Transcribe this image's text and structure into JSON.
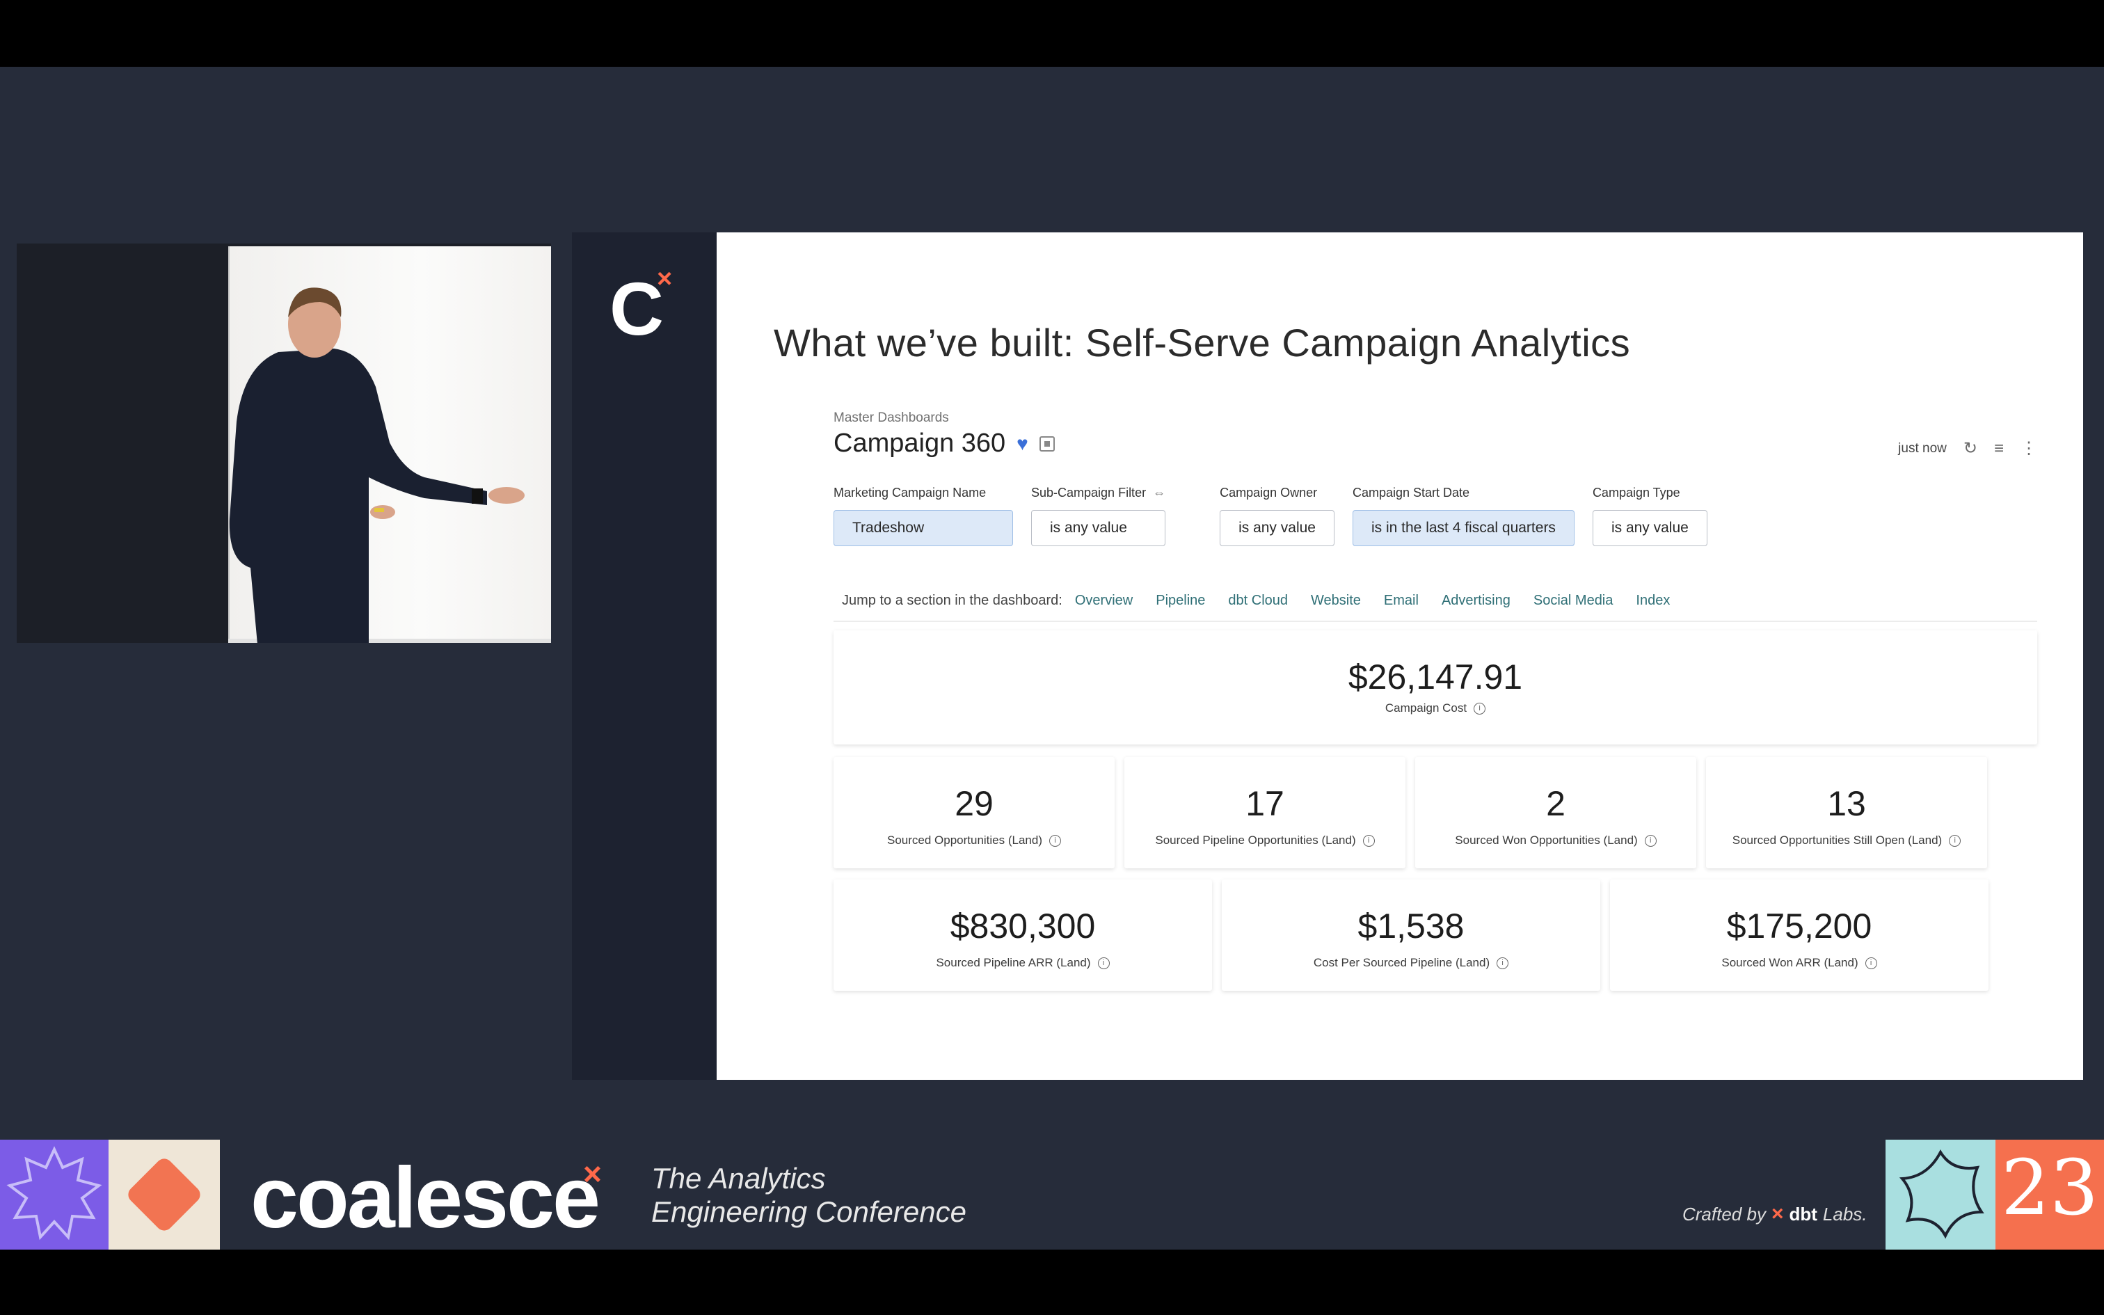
{
  "slide": {
    "title": "What we’ve built: Self-Serve Campaign Analytics",
    "logo_letter": "C",
    "logo_mark": "×"
  },
  "dashboard": {
    "breadcrumb": "Master Dashboards",
    "title": "Campaign 360",
    "updated": "just now",
    "filters": [
      {
        "label": "Marketing Campaign Name",
        "value": "Tradeshow"
      },
      {
        "label": "Sub-Campaign Filter",
        "value": "is any value"
      },
      {
        "label": "Campaign Owner",
        "value": "is any value"
      },
      {
        "label": "Campaign Start Date",
        "value": "is in the last 4 fiscal quarters"
      },
      {
        "label": "Campaign Type",
        "value": "is any value"
      }
    ],
    "jump_label": "Jump to a section in the dashboard:",
    "jump_links": [
      "Overview",
      "Pipeline",
      "dbt Cloud",
      "Website",
      "Email",
      "Advertising",
      "Social Media",
      "Index"
    ],
    "kpi_main": {
      "value": "$26,147.91",
      "label": "Campaign Cost"
    },
    "kpi_row1": [
      {
        "value": "29",
        "label": "Sourced Opportunities (Land)"
      },
      {
        "value": "17",
        "label": "Sourced Pipeline Opportunities (Land)"
      },
      {
        "value": "2",
        "label": "Sourced Won Opportunities (Land)"
      },
      {
        "value": "13",
        "label": "Sourced Opportunities Still Open (Land)"
      }
    ],
    "kpi_row2": [
      {
        "value": "$830,300",
        "label": "Sourced Pipeline ARR (Land)"
      },
      {
        "value": "$1,538",
        "label": "Cost Per Sourced Pipeline (Land)"
      },
      {
        "value": "$175,200",
        "label": "Sourced Won ARR (Land)"
      }
    ]
  },
  "footer": {
    "brand": "coalesce",
    "brand_mark": "×",
    "tagline_1": "The Analytics",
    "tagline_2": "Engineering Conference",
    "crafted_by": "Crafted by",
    "crafted_mark": "×",
    "crafted_brand": "dbt",
    "crafted_suffix": "Labs.",
    "year": "23"
  },
  "colors": {
    "background": "#262c3a",
    "accent": "#ff694a",
    "link": "#2f6f76",
    "chip_selected": "#dde9f8"
  }
}
